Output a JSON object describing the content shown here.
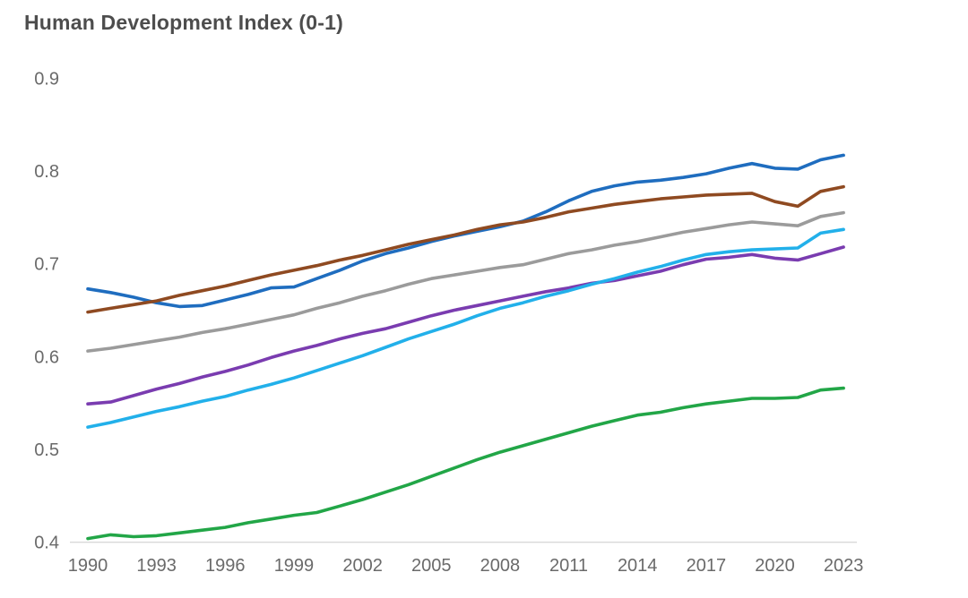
{
  "title": "Human Development Index (0-1)",
  "chart_data": {
    "type": "line",
    "title": "Human Development Index (0-1)",
    "xlabel": "",
    "ylabel": "",
    "xlim": [
      1990,
      2023
    ],
    "ylim": [
      0.4,
      0.9
    ],
    "grid": false,
    "legend_position": "none",
    "x": [
      1990,
      1991,
      1992,
      1993,
      1994,
      1995,
      1996,
      1997,
      1998,
      1999,
      2000,
      2001,
      2002,
      2003,
      2004,
      2005,
      2006,
      2007,
      2008,
      2009,
      2010,
      2011,
      2012,
      2013,
      2014,
      2015,
      2016,
      2017,
      2018,
      2019,
      2020,
      2021,
      2022,
      2023
    ],
    "x_ticks": [
      1990,
      1993,
      1996,
      1999,
      2002,
      2005,
      2008,
      2011,
      2014,
      2017,
      2020,
      2023
    ],
    "x_tick_labels": [
      "1990",
      "1993",
      "1996",
      "1999",
      "2002",
      "2005",
      "2008",
      "2011",
      "2014",
      "2017",
      "2020",
      "2023"
    ],
    "y_ticks": [
      0.4,
      0.5,
      0.6,
      0.7,
      0.8,
      0.9
    ],
    "y_tick_labels": [
      "0.4",
      "0.5",
      "0.6",
      "0.7",
      "0.8",
      "0.9"
    ],
    "axis_line_color": "#d9d9d9",
    "tick_text_color": "#6a6a6a",
    "title_color": "#4d4d4d",
    "series": [
      {
        "name": "gray-line",
        "color": "#9b9b9b",
        "values": [
          0.606,
          0.609,
          0.613,
          0.617,
          0.621,
          0.626,
          0.63,
          0.635,
          0.64,
          0.645,
          0.652,
          0.658,
          0.665,
          0.671,
          0.678,
          0.684,
          0.688,
          0.692,
          0.696,
          0.699,
          0.705,
          0.711,
          0.715,
          0.72,
          0.724,
          0.729,
          0.734,
          0.738,
          0.742,
          0.745,
          0.743,
          0.741,
          0.751,
          0.755
        ]
      },
      {
        "name": "green-line",
        "color": "#22a647",
        "values": [
          0.404,
          0.408,
          0.406,
          0.407,
          0.41,
          0.413,
          0.416,
          0.421,
          0.425,
          0.429,
          0.432,
          0.439,
          0.446,
          0.454,
          0.462,
          0.471,
          0.48,
          0.489,
          0.497,
          0.504,
          0.511,
          0.518,
          0.525,
          0.531,
          0.537,
          0.54,
          0.545,
          0.549,
          0.552,
          0.555,
          0.555,
          0.556,
          0.564,
          0.566
        ]
      },
      {
        "name": "blue-line",
        "color": "#1f6dbf",
        "values": [
          0.673,
          0.669,
          0.664,
          0.658,
          0.654,
          0.655,
          0.661,
          0.667,
          0.674,
          0.675,
          0.684,
          0.693,
          0.703,
          0.711,
          0.717,
          0.724,
          0.73,
          0.735,
          0.74,
          0.746,
          0.756,
          0.768,
          0.778,
          0.784,
          0.788,
          0.79,
          0.793,
          0.797,
          0.803,
          0.808,
          0.803,
          0.802,
          0.812,
          0.817
        ]
      },
      {
        "name": "brown-line",
        "color": "#8f4a21",
        "values": [
          0.648,
          0.652,
          0.656,
          0.66,
          0.666,
          0.671,
          0.676,
          0.682,
          0.688,
          0.693,
          0.698,
          0.704,
          0.709,
          0.715,
          0.721,
          0.726,
          0.731,
          0.737,
          0.742,
          0.745,
          0.75,
          0.756,
          0.76,
          0.764,
          0.767,
          0.77,
          0.772,
          0.774,
          0.775,
          0.776,
          0.767,
          0.762,
          0.778,
          0.783
        ]
      },
      {
        "name": "purple-line",
        "color": "#7a3cb0",
        "values": [
          0.549,
          0.551,
          0.558,
          0.565,
          0.571,
          0.578,
          0.584,
          0.591,
          0.599,
          0.606,
          0.612,
          0.619,
          0.625,
          0.63,
          0.637,
          0.644,
          0.65,
          0.655,
          0.66,
          0.665,
          0.67,
          0.674,
          0.679,
          0.682,
          0.687,
          0.692,
          0.699,
          0.705,
          0.707,
          0.71,
          0.706,
          0.704,
          0.711,
          0.718
        ]
      },
      {
        "name": "cyan-line",
        "color": "#22b0ea",
        "values": [
          0.524,
          0.529,
          0.535,
          0.541,
          0.546,
          0.552,
          0.557,
          0.564,
          0.57,
          0.577,
          0.585,
          0.593,
          0.601,
          0.61,
          0.619,
          0.627,
          0.635,
          0.644,
          0.652,
          0.658,
          0.665,
          0.671,
          0.678,
          0.684,
          0.691,
          0.697,
          0.704,
          0.71,
          0.713,
          0.715,
          0.716,
          0.717,
          0.733,
          0.737
        ]
      }
    ]
  }
}
